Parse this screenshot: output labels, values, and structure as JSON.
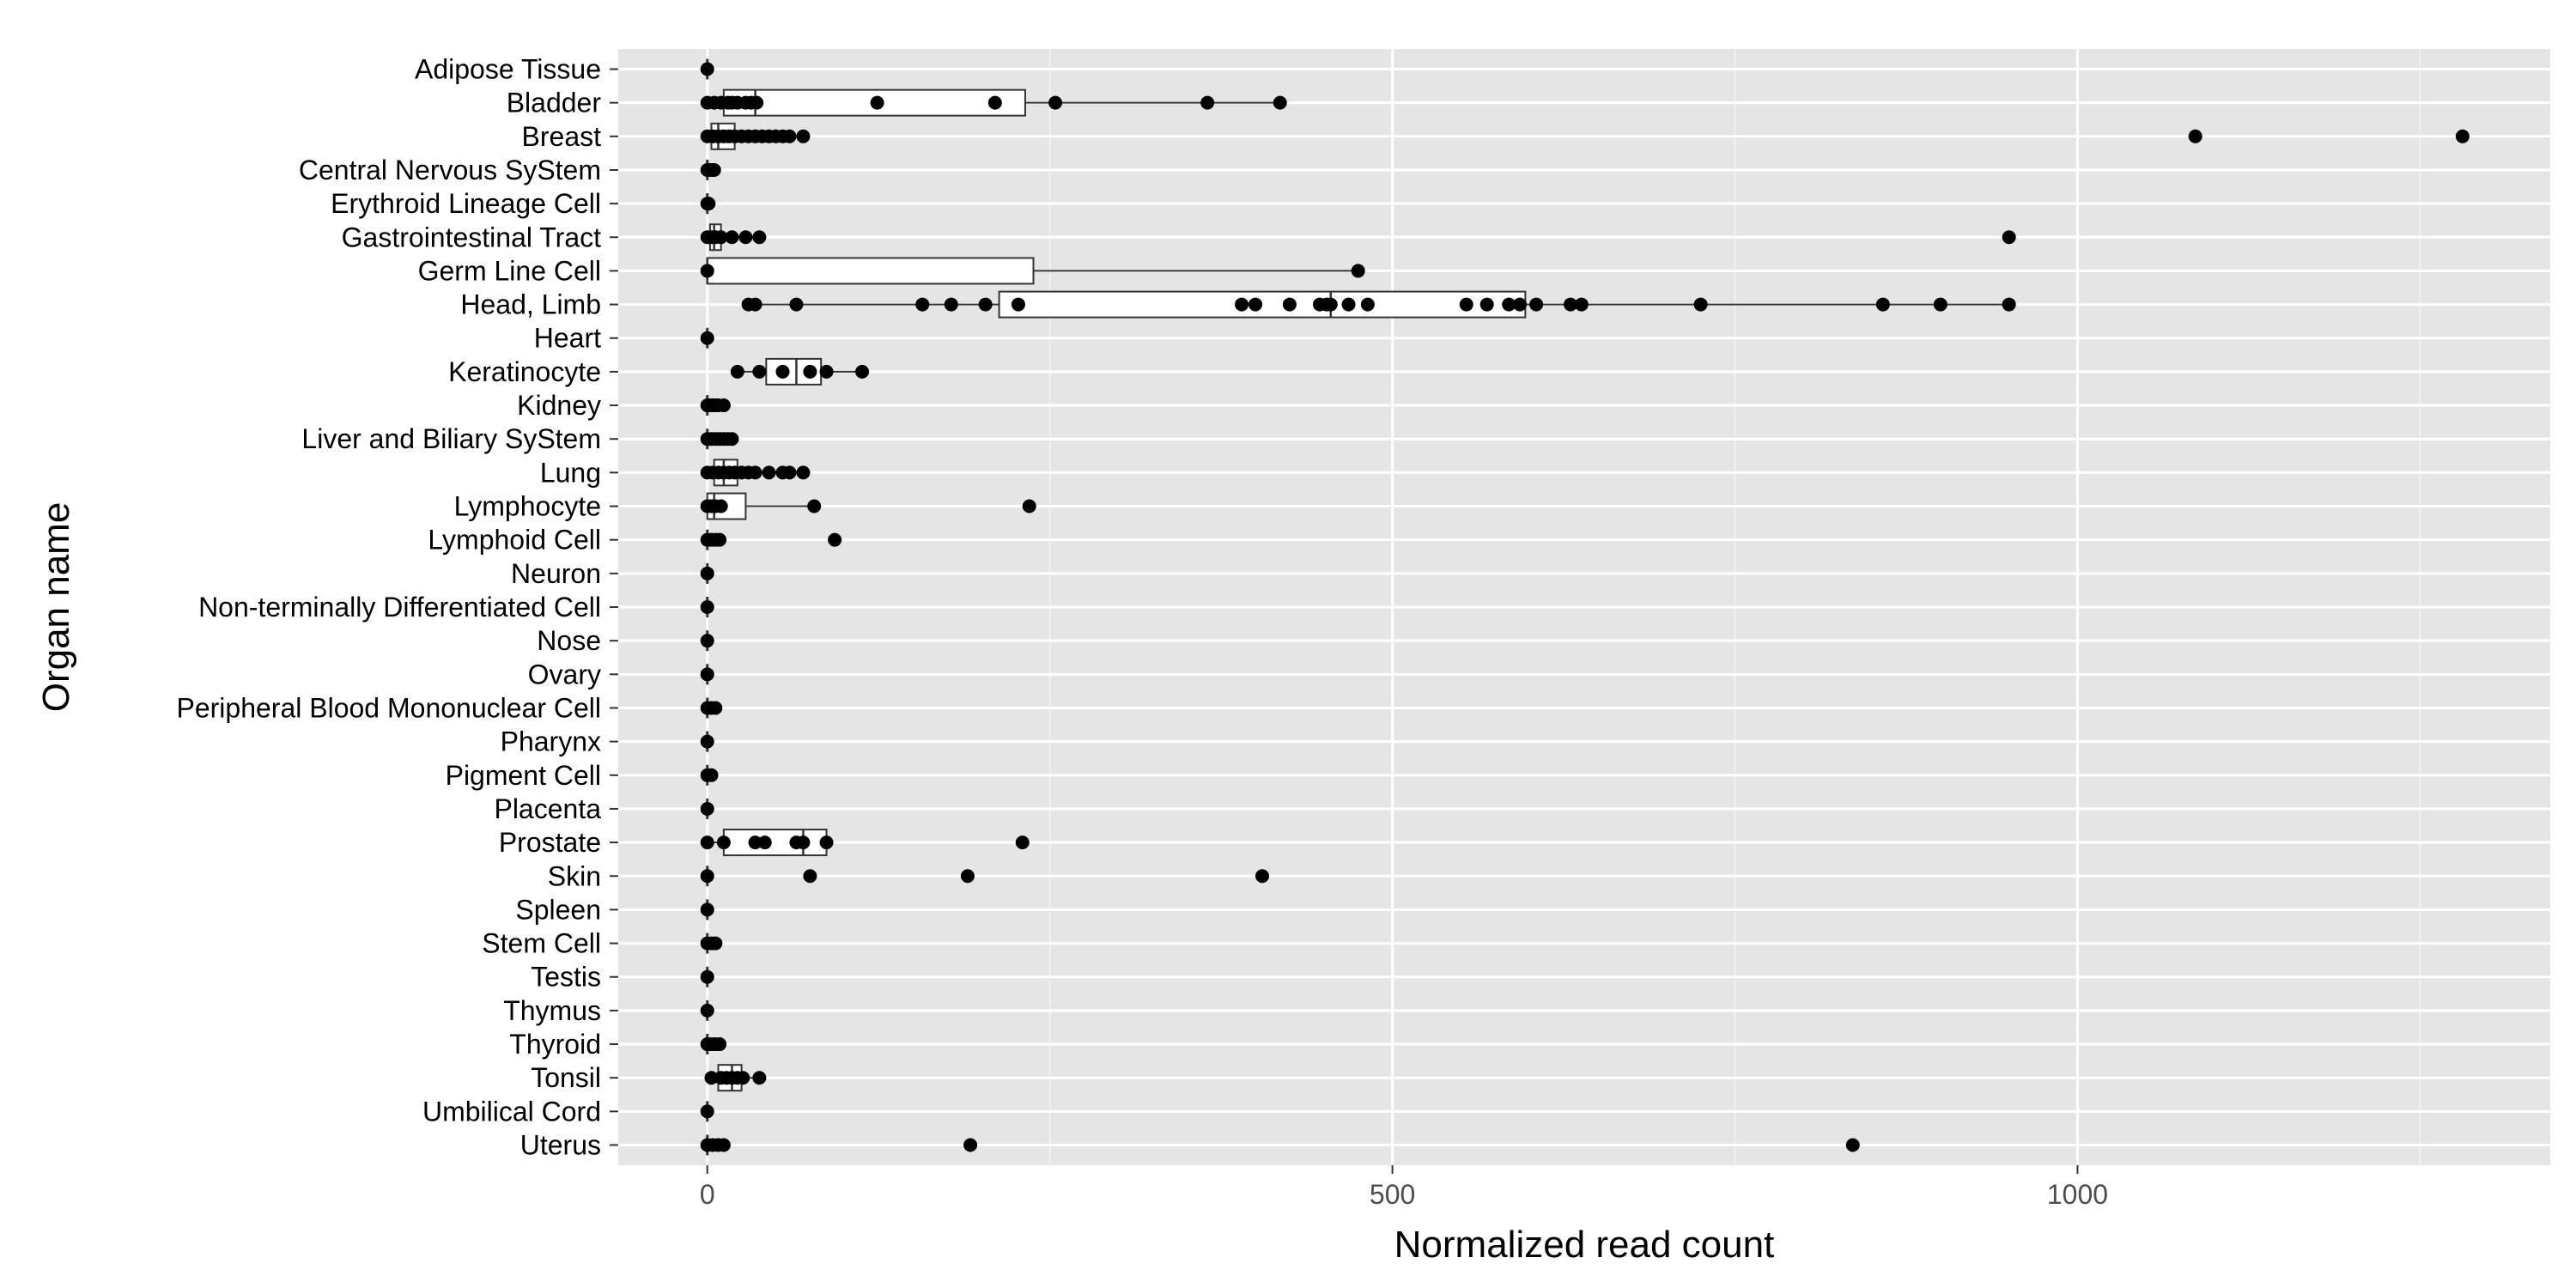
{
  "chart_data": {
    "type": "boxplot",
    "xlabel": "Normalized read count",
    "ylabel": "Organ name",
    "xlim": [
      -65,
      1345
    ],
    "xticks": [
      0,
      500,
      1000
    ],
    "grid": true,
    "background_color": "#e5e5e5",
    "grid_color": "#ffffff",
    "point_color": "#000000",
    "categories": [
      "Adipose Tissue",
      "Bladder",
      "Breast",
      "Central Nervous SyStem",
      "Erythroid Lineage Cell",
      "Gastrointestinal Tract",
      "Germ Line Cell",
      "Head, Limb",
      "Heart",
      "Keratinocyte",
      "Kidney",
      "Liver and Biliary SyStem",
      "Lung",
      "Lymphocyte",
      "Lymphoid Cell",
      "Neuron",
      "Non-terminally Differentiated Cell",
      "Nose",
      "Ovary",
      "Peripheral Blood Mononuclear Cell",
      "Pharynx",
      "Pigment Cell",
      "Placenta",
      "Prostate",
      "Skin",
      "Spleen",
      "Stem Cell",
      "Testis",
      "Thymus",
      "Thyroid",
      "Tonsil",
      "Umbilical Cord",
      "Uterus"
    ],
    "groups": [
      {
        "box": null,
        "points": [
          0
        ]
      },
      {
        "box": [
          0,
          12,
          35,
          232,
          418
        ],
        "points": [
          0,
          5,
          10,
          15,
          18,
          22,
          28,
          32,
          36,
          124,
          210,
          254,
          365,
          418
        ]
      },
      {
        "box": [
          0,
          3,
          8,
          20,
          70
        ],
        "points": [
          0,
          4,
          8,
          12,
          16,
          20,
          25,
          30,
          35,
          40,
          45,
          50,
          55,
          60,
          70,
          1086,
          1281
        ]
      },
      {
        "box": null,
        "points": [
          0,
          2,
          4,
          5
        ]
      },
      {
        "box": null,
        "points": [
          0,
          1
        ]
      },
      {
        "box": [
          0,
          2,
          5,
          10,
          40
        ],
        "points": [
          0,
          3,
          6,
          10,
          18,
          28,
          38,
          950
        ]
      },
      {
        "box": [
          0,
          0,
          0,
          238,
          475
        ],
        "points": [
          0,
          475
        ]
      },
      {
        "box": [
          30,
          213,
          455,
          597,
          950
        ],
        "points": [
          30,
          35,
          65,
          157,
          178,
          203,
          227,
          390,
          400,
          425,
          447,
          452,
          455,
          468,
          482,
          554,
          569,
          585,
          593,
          605,
          630,
          638,
          725,
          858,
          900,
          950
        ]
      },
      {
        "box": null,
        "points": [
          0
        ]
      },
      {
        "box": [
          22,
          43,
          65,
          83,
          113
        ],
        "points": [
          22,
          38,
          55,
          75,
          87,
          113
        ]
      },
      {
        "box": null,
        "points": [
          0,
          2,
          4,
          6,
          8,
          12
        ]
      },
      {
        "box": null,
        "points": [
          0,
          3,
          6,
          9,
          12,
          15,
          18
        ]
      },
      {
        "box": [
          0,
          5,
          12,
          22,
          70
        ],
        "points": [
          0,
          4,
          8,
          12,
          16,
          20,
          25,
          30,
          35,
          45,
          55,
          60,
          70
        ]
      },
      {
        "box": [
          0,
          0,
          5,
          28,
          78
        ],
        "points": [
          0,
          3,
          6,
          10,
          78,
          235
        ]
      },
      {
        "box": null,
        "points": [
          0,
          3,
          6,
          9,
          93
        ]
      },
      {
        "box": null,
        "points": [
          0
        ]
      },
      {
        "box": null,
        "points": [
          0
        ]
      },
      {
        "box": null,
        "points": [
          0
        ]
      },
      {
        "box": null,
        "points": [
          0
        ]
      },
      {
        "box": null,
        "points": [
          0,
          3,
          6
        ]
      },
      {
        "box": null,
        "points": [
          0
        ]
      },
      {
        "box": null,
        "points": [
          0,
          3
        ]
      },
      {
        "box": null,
        "points": [
          0
        ]
      },
      {
        "box": [
          0,
          12,
          70,
          87,
          87
        ],
        "points": [
          0,
          12,
          35,
          42,
          65,
          70,
          87,
          230
        ]
      },
      {
        "box": null,
        "points": [
          0,
          75,
          190,
          405
        ]
      },
      {
        "box": null,
        "points": [
          0
        ]
      },
      {
        "box": null,
        "points": [
          0,
          3,
          6
        ]
      },
      {
        "box": null,
        "points": [
          0
        ]
      },
      {
        "box": null,
        "points": [
          0
        ]
      },
      {
        "box": null,
        "points": [
          0,
          3,
          6,
          9
        ]
      },
      {
        "box": [
          5,
          8,
          18,
          25,
          38
        ],
        "points": [
          3,
          10,
          14,
          18,
          22,
          26,
          38
        ]
      },
      {
        "box": null,
        "points": [
          0
        ]
      },
      {
        "box": null,
        "points": [
          0,
          4,
          8,
          12,
          192,
          836
        ]
      }
    ]
  }
}
